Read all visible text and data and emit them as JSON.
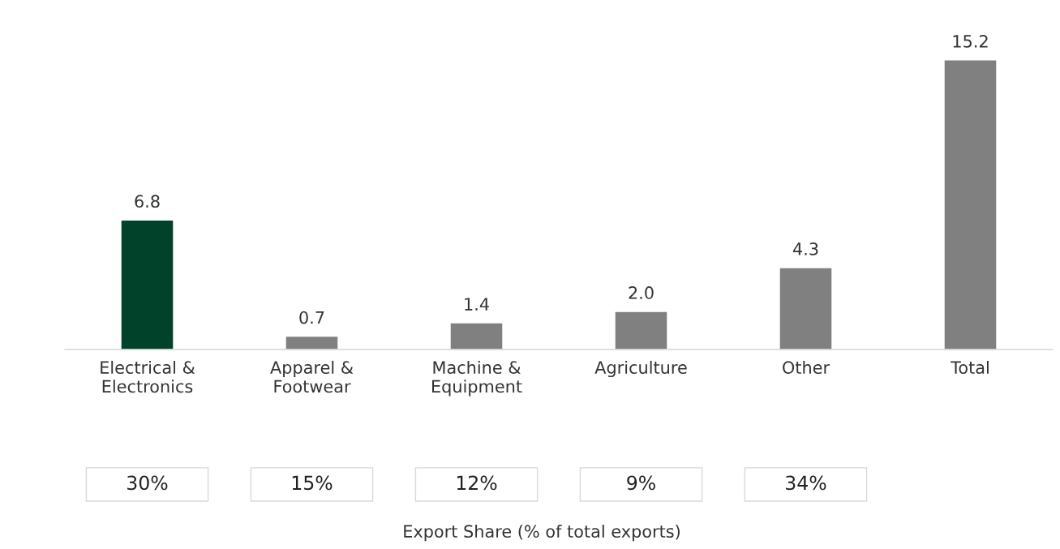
{
  "chart_data": {
    "type": "bar",
    "categories": [
      "Electrical &\nElectronics",
      "Apparel &\nFootwear",
      "Machine &\nEquipment",
      "Agriculture",
      "Other",
      "Total"
    ],
    "values": [
      6.8,
      0.7,
      1.4,
      2.0,
      4.3,
      15.2
    ],
    "colors": [
      "#00432a",
      "#808080",
      "#808080",
      "#808080",
      "#808080",
      "#808080"
    ],
    "value_labels": [
      "6.8",
      "0.7",
      "1.4",
      "2.0",
      "4.3",
      "15.2"
    ],
    "annotations": [
      "30%",
      "15%",
      "12%",
      "9%",
      "34%",
      "Export Share (% of total exports)"
    ],
    "grid": false,
    "legend": false
  }
}
